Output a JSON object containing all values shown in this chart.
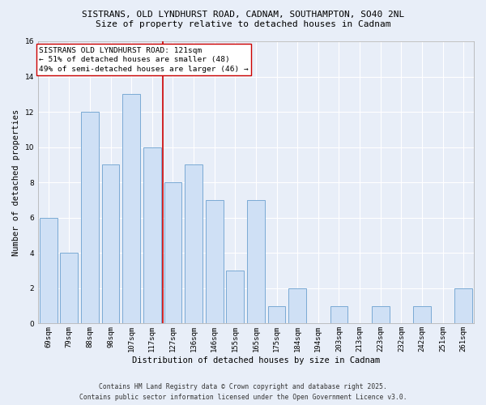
{
  "title_line1": "SISTRANS, OLD LYNDHURST ROAD, CADNAM, SOUTHAMPTON, SO40 2NL",
  "title_line2": "Size of property relative to detached houses in Cadnam",
  "xlabel": "Distribution of detached houses by size in Cadnam",
  "ylabel": "Number of detached properties",
  "categories": [
    "69sqm",
    "79sqm",
    "88sqm",
    "98sqm",
    "107sqm",
    "117sqm",
    "127sqm",
    "136sqm",
    "146sqm",
    "155sqm",
    "165sqm",
    "175sqm",
    "184sqm",
    "194sqm",
    "203sqm",
    "213sqm",
    "223sqm",
    "232sqm",
    "242sqm",
    "251sqm",
    "261sqm"
  ],
  "values": [
    6,
    4,
    12,
    9,
    13,
    10,
    8,
    9,
    7,
    3,
    7,
    1,
    2,
    0,
    1,
    0,
    1,
    0,
    1,
    0,
    2
  ],
  "bar_color": "#cfe0f5",
  "bar_edge_color": "#7aaad4",
  "vline_x": 5.5,
  "vline_color": "#cc0000",
  "annotation_text": "SISTRANS OLD LYNDHURST ROAD: 121sqm\n← 51% of detached houses are smaller (48)\n49% of semi-detached houses are larger (46) →",
  "annotation_box_color": "#ffffff",
  "annotation_box_edge": "#cc0000",
  "ylim": [
    0,
    16
  ],
  "yticks": [
    0,
    2,
    4,
    6,
    8,
    10,
    12,
    14,
    16
  ],
  "footer_line1": "Contains HM Land Registry data © Crown copyright and database right 2025.",
  "footer_line2": "Contains public sector information licensed under the Open Government Licence v3.0.",
  "background_color": "#e8eef8",
  "grid_color": "#ffffff",
  "title_fontsize": 8.0,
  "subtitle_fontsize": 8.0,
  "axis_label_fontsize": 7.5,
  "tick_fontsize": 6.5,
  "annotation_fontsize": 6.8,
  "footer_fontsize": 5.8
}
